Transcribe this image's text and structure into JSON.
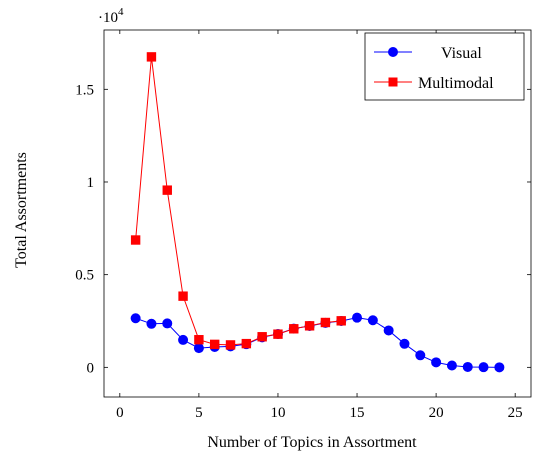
{
  "chart_data": {
    "type": "line",
    "xlabel": "Number of Topics in Assortment",
    "ylabel": "Total Assortments",
    "y_scale_prefix": "·10",
    "y_scale_exponent": "4",
    "xlim": [
      -1,
      26
    ],
    "ylim": [
      -1600,
      18200
    ],
    "x_ticks": [
      0,
      5,
      10,
      15,
      20,
      25
    ],
    "x_tick_labels": [
      "0",
      "5",
      "10",
      "15",
      "20",
      "25"
    ],
    "y_ticks": [
      0,
      5000,
      10000,
      15000
    ],
    "y_tick_labels": [
      "0",
      "0.5",
      "1",
      "1.5"
    ],
    "grid": false,
    "legend_position": "top-right",
    "series": [
      {
        "name": "Visual",
        "color": "#0000ff",
        "marker": "circle",
        "x": [
          1,
          2,
          3,
          4,
          5,
          6,
          7,
          8,
          9,
          10,
          11,
          12,
          13,
          14,
          15,
          16,
          17,
          18,
          19,
          20,
          21,
          22,
          23,
          24
        ],
        "y": [
          2650,
          2350,
          2370,
          1480,
          1040,
          1100,
          1130,
          1250,
          1620,
          1800,
          2090,
          2230,
          2400,
          2500,
          2680,
          2540,
          1990,
          1270,
          650,
          270,
          100,
          20,
          10,
          0
        ]
      },
      {
        "name": "Multimodal",
        "color": "#ff0000",
        "marker": "square",
        "x": [
          1,
          2,
          3,
          4,
          5,
          6,
          7,
          8,
          9,
          10,
          11,
          12,
          13,
          14
        ],
        "y": [
          6870,
          16750,
          9560,
          3840,
          1490,
          1240,
          1210,
          1280,
          1650,
          1790,
          2080,
          2240,
          2420,
          2510
        ]
      }
    ]
  }
}
